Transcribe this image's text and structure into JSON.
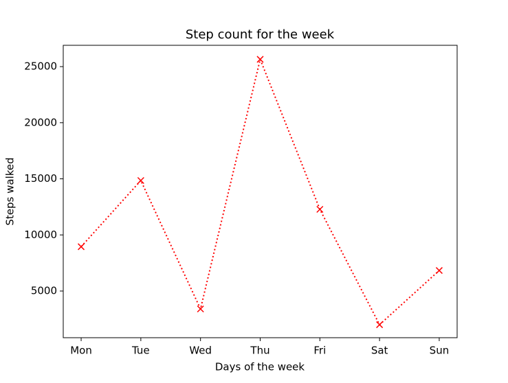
{
  "chart_data": {
    "type": "line",
    "title": "Step count for the week",
    "x_label": "Days of the week",
    "y_label": "Steps walked",
    "categories": [
      "Mon",
      "Tue",
      "Wed",
      "Thu",
      "Fri",
      "Sat",
      "Sun"
    ],
    "series": [
      {
        "color": "#ff0000",
        "values": [
          8950,
          14850,
          3400,
          25650,
          12280,
          2000,
          6830
        ]
      }
    ],
    "ylim": [
      840,
      26900
    ],
    "yticks": [
      5000,
      10000,
      15000,
      20000,
      25000
    ]
  }
}
